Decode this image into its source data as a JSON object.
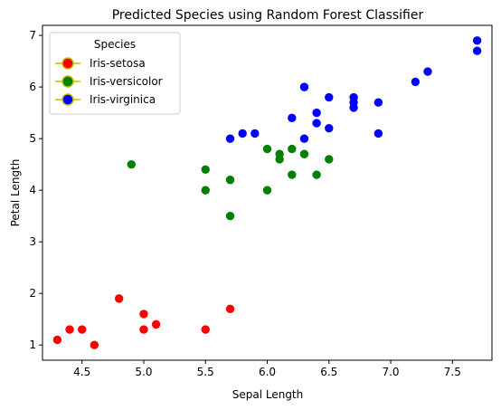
{
  "chart_data": {
    "type": "scatter",
    "title": "Predicted Species using Random Forest Classifier",
    "xlabel": "Sepal Length",
    "ylabel": "Petal Length",
    "xlim": [
      4.18,
      7.82
    ],
    "ylim": [
      0.705,
      7.195
    ],
    "xticks": [
      4.5,
      5.0,
      5.5,
      6.0,
      6.5,
      7.0,
      7.5
    ],
    "xtick_labels": [
      "4.5",
      "5.0",
      "5.5",
      "6.0",
      "6.5",
      "7.0",
      "7.5"
    ],
    "yticks": [
      1,
      2,
      3,
      4,
      5,
      6,
      7
    ],
    "ytick_labels": [
      "1",
      "2",
      "3",
      "4",
      "5",
      "6",
      "7"
    ],
    "grid": false,
    "legend": {
      "title": "Species",
      "placement": "top-left",
      "marker_edge_color": "#bfbf00"
    },
    "series": [
      {
        "name": "Iris-setosa",
        "color": "#ff0000",
        "points": [
          [
            4.3,
            1.1
          ],
          [
            4.4,
            1.3
          ],
          [
            4.5,
            1.3
          ],
          [
            4.6,
            1.0
          ],
          [
            4.8,
            1.9
          ],
          [
            5.0,
            1.6
          ],
          [
            5.0,
            1.3
          ],
          [
            5.1,
            1.4
          ],
          [
            5.5,
            1.3
          ],
          [
            5.7,
            1.7
          ]
        ]
      },
      {
        "name": "Iris-versicolor",
        "color": "#008000",
        "points": [
          [
            4.9,
            4.5
          ],
          [
            5.5,
            4.4
          ],
          [
            5.5,
            4.0
          ],
          [
            5.7,
            4.2
          ],
          [
            5.7,
            3.5
          ],
          [
            6.0,
            4.8
          ],
          [
            6.0,
            4.0
          ],
          [
            6.1,
            4.7
          ],
          [
            6.1,
            4.6
          ],
          [
            6.2,
            4.8
          ],
          [
            6.2,
            4.3
          ],
          [
            6.3,
            4.7
          ],
          [
            6.4,
            4.3
          ],
          [
            6.5,
            4.6
          ]
        ]
      },
      {
        "name": "Iris-virginica",
        "color": "#0000ff",
        "points": [
          [
            5.7,
            5.0
          ],
          [
            5.8,
            5.1
          ],
          [
            5.9,
            5.1
          ],
          [
            6.2,
            5.4
          ],
          [
            6.3,
            6.0
          ],
          [
            6.3,
            5.0
          ],
          [
            6.4,
            5.5
          ],
          [
            6.4,
            5.3
          ],
          [
            6.5,
            5.8
          ],
          [
            6.5,
            5.2
          ],
          [
            6.7,
            5.8
          ],
          [
            6.7,
            5.7
          ],
          [
            6.7,
            5.6
          ],
          [
            6.9,
            5.7
          ],
          [
            6.9,
            5.1
          ],
          [
            7.2,
            6.1
          ],
          [
            7.3,
            6.3
          ],
          [
            7.7,
            6.9
          ],
          [
            7.7,
            6.7
          ]
        ]
      }
    ]
  }
}
